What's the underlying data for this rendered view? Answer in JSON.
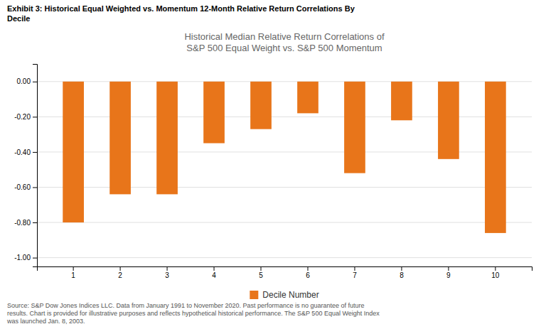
{
  "chart_data": {
    "type": "bar",
    "title": "Exhibit 3: Historical Equal Weighted vs. Momentum 12-Month Relative Return Correlations By\nDecile",
    "subtitle": "Historical Median Relative Return Correlations of\nS&P 500 Equal Weight vs. S&P 500 Momentum",
    "categories": [
      1,
      2,
      3,
      4,
      5,
      6,
      7,
      8,
      9,
      10
    ],
    "series": [
      {
        "name": "Decile Number",
        "color": "#E8751A",
        "values": [
          -0.8,
          -0.64,
          -0.64,
          -0.35,
          -0.27,
          -0.18,
          -0.52,
          -0.22,
          -0.44,
          -0.86
        ]
      }
    ],
    "ylim": [
      -1.05,
      0.1
    ],
    "yticks": [
      {
        "value": 0.0,
        "label": "0.00"
      },
      {
        "value": -0.2,
        "label": "-0.20"
      },
      {
        "value": -0.4,
        "label": "-0.40"
      },
      {
        "value": -0.6,
        "label": "-0.60"
      },
      {
        "value": -0.8,
        "label": "-0.80"
      },
      {
        "value": -1.0,
        "label": "-1.00"
      }
    ],
    "grid": true,
    "legend": "bottom",
    "annotations": [
      "Source: S&P Dow Jones Indices LLC. Data from January 1991 to November 2020. Past performance is no guarantee of future\nresults. Chart is provided for illustrative purposes and reflects hypothetical historical performance. The S&P 500 Equal Weight Index\nwas launched Jan. 8, 2003."
    ]
  }
}
